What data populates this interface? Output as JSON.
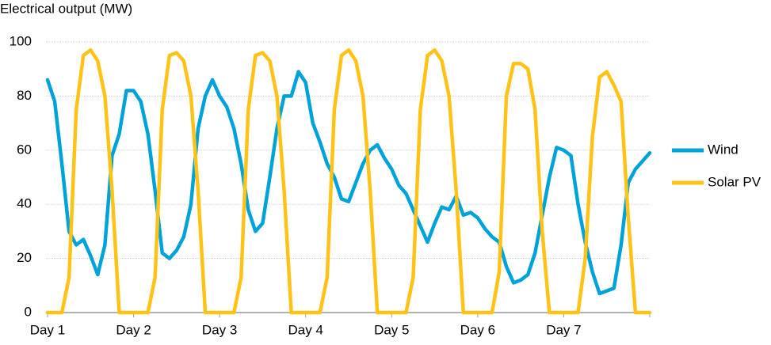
{
  "chart_data": {
    "type": "line",
    "y_label": "Electrical output (MW)",
    "x": [
      0,
      2,
      4,
      6,
      8,
      10,
      12,
      14,
      16,
      18,
      20,
      22,
      24,
      26,
      28,
      30,
      32,
      34,
      36,
      38,
      40,
      42,
      44,
      46,
      48,
      50,
      52,
      54,
      56,
      58,
      60,
      62,
      64,
      66,
      68,
      70,
      72,
      74,
      76,
      78,
      80,
      82,
      84,
      86,
      88,
      90,
      92,
      94,
      96,
      98,
      100,
      102,
      104,
      106,
      108,
      110,
      112,
      114,
      116,
      118,
      120,
      122,
      124,
      126,
      128,
      130,
      132,
      134,
      136,
      138,
      140,
      142,
      144,
      146,
      148,
      150,
      152,
      154,
      156,
      158,
      160,
      162,
      164,
      166,
      168
    ],
    "series": [
      {
        "name": "Wind",
        "color": "#00a3d9",
        "values": [
          86,
          78,
          55,
          30,
          25,
          27,
          21,
          14,
          25,
          58,
          66,
          82,
          82,
          78,
          66,
          45,
          22,
          20,
          23,
          28,
          40,
          68,
          80,
          86,
          80,
          76,
          68,
          55,
          38,
          30,
          33,
          50,
          68,
          80,
          80,
          89,
          85,
          70,
          63,
          55,
          50,
          42,
          41,
          48,
          55,
          60,
          62,
          57,
          53,
          47,
          44,
          38,
          32,
          26,
          33,
          39,
          38,
          43,
          36,
          37,
          35,
          31,
          28,
          26,
          17,
          11,
          12,
          14,
          22,
          36,
          50,
          61,
          60,
          58,
          40,
          26,
          15,
          7,
          8,
          9,
          25,
          48,
          53,
          56,
          59
        ]
      },
      {
        "name": "Solar PV",
        "color": "#ffc217",
        "values": [
          0,
          0,
          0,
          13,
          75,
          95,
          97,
          93,
          80,
          45,
          0,
          0,
          0,
          0,
          0,
          13,
          75,
          95,
          96,
          93,
          80,
          45,
          0,
          0,
          0,
          0,
          0,
          13,
          75,
          95,
          96,
          93,
          80,
          45,
          0,
          0,
          0,
          0,
          0,
          13,
          75,
          95,
          97,
          93,
          80,
          45,
          0,
          0,
          0,
          0,
          0,
          13,
          75,
          95,
          97,
          93,
          80,
          45,
          0,
          0,
          0,
          0,
          0,
          15,
          80,
          92,
          92,
          90,
          75,
          30,
          0,
          0,
          0,
          0,
          0,
          20,
          65,
          87,
          89,
          84,
          78,
          35,
          0,
          0,
          0
        ]
      }
    ],
    "xlim": [
      0,
      168
    ],
    "xticks": [
      {
        "value": 0,
        "label": "Day 1"
      },
      {
        "value": 24,
        "label": "Day 2"
      },
      {
        "value": 48,
        "label": "Day 3"
      },
      {
        "value": 72,
        "label": "Day 4"
      },
      {
        "value": 96,
        "label": "Day 5"
      },
      {
        "value": 120,
        "label": "Day 6"
      },
      {
        "value": 144,
        "label": "Day 7"
      }
    ],
    "ylim": [
      0,
      100
    ],
    "yticks": [
      0,
      20,
      40,
      60,
      80,
      100
    ],
    "grid": true,
    "legend": "right"
  }
}
